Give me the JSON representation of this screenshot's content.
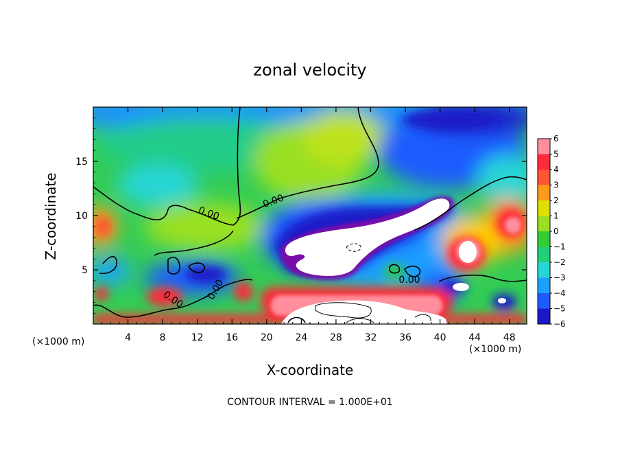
{
  "chart_data": {
    "type": "heatmap",
    "title": "zonal velocity",
    "xlabel": "X-coordinate",
    "ylabel": "Z-coordinate",
    "x_unit_label": "(×1000 m)",
    "footer": "CONTOUR INTERVAL = 1.000E+01",
    "xlim": [
      0,
      50
    ],
    "ylim": [
      0,
      20
    ],
    "x_ticks": [
      4,
      8,
      12,
      16,
      20,
      24,
      28,
      32,
      36,
      40,
      44,
      48
    ],
    "y_ticks": [
      5,
      10,
      15
    ],
    "colorbar": {
      "levels": [
        6,
        5,
        4,
        3,
        2,
        1,
        0,
        -1,
        -2,
        -3,
        -4,
        -5,
        -6
      ],
      "colors": [
        "#ff8f9c",
        "#ff2a3a",
        "#ff5533",
        "#ff9a1a",
        "#e0e000",
        "#99e021",
        "#33cc33",
        "#22d07a",
        "#26d6d6",
        "#1ea0ff",
        "#1e5bff",
        "#1a1ac8",
        "#7a0ca8"
      ]
    },
    "contour_labels": [
      "0.00",
      "0.00",
      "0.00",
      "0.00",
      "0.00"
    ],
    "grid": false,
    "legend": "colorbar-right"
  }
}
